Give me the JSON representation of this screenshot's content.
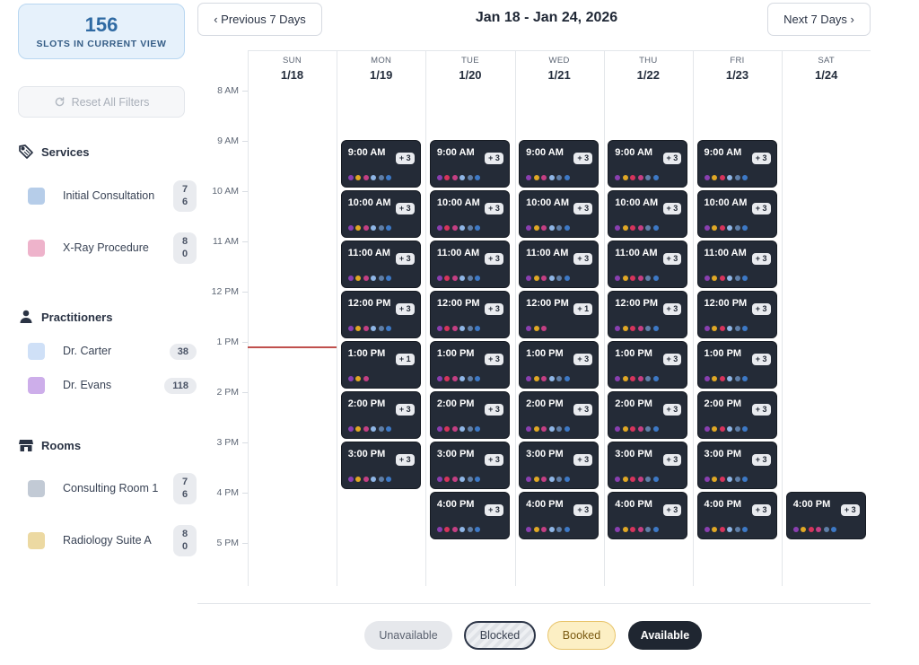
{
  "summary": {
    "count": "156",
    "label": "SLOTS IN CURRENT VIEW"
  },
  "reset": {
    "label": "Reset All Filters",
    "icon": "refresh-icon"
  },
  "filters": {
    "services": {
      "title": "Services",
      "icon": "tag-icon",
      "items": [
        {
          "label": "Initial Consultation",
          "count": "7\n6",
          "color": "#b6cde9"
        },
        {
          "label": "X-Ray Procedure",
          "count": "8\n0",
          "color": "#eeb3cb"
        }
      ]
    },
    "practitioners": {
      "title": "Practitioners",
      "icon": "user-icon",
      "items": [
        {
          "label": "Dr. Carter",
          "count": "38",
          "color": "#cfe0f7"
        },
        {
          "label": "Dr. Evans",
          "count": "118",
          "color": "#cdaeea"
        }
      ]
    },
    "rooms": {
      "title": "Rooms",
      "icon": "store-icon",
      "items": [
        {
          "label": "Consulting Room 1",
          "count": "7\n6",
          "color": "#c2cad5"
        },
        {
          "label": "Radiology Suite A",
          "count": "8\n0",
          "color": "#ecd9a2"
        }
      ]
    }
  },
  "header": {
    "prev_label": "‹ Previous 7 Days",
    "next_label": "Next 7 Days ›",
    "date_range": "Jan 18 - Jan 24, 2026"
  },
  "calendar": {
    "hours": [
      "8 AM",
      "9 AM",
      "10 AM",
      "11 AM",
      "12 PM",
      "1 PM",
      "2 PM",
      "3 PM",
      "4 PM",
      "5 PM"
    ],
    "days": [
      {
        "name": "SUN",
        "date": "1/18"
      },
      {
        "name": "MON",
        "date": "1/19"
      },
      {
        "name": "TUE",
        "date": "1/20"
      },
      {
        "name": "WED",
        "date": "1/21"
      },
      {
        "name": "THU",
        "date": "1/22"
      },
      {
        "name": "FRI",
        "date": "1/23"
      },
      {
        "name": "SAT",
        "date": "1/24"
      }
    ],
    "dot_colors": {
      "purple": "#8a3fb0",
      "yellow": "#e0a825",
      "red": "#d6345c",
      "pink": "#c43f83",
      "light_blue": "#8fb6e6",
      "slate": "#5f7fa8",
      "blue": "#3d79c6"
    },
    "slots": [
      {
        "day": 1,
        "hour": 1,
        "time": "9:00 AM",
        "more": "+ 3",
        "dots": [
          "purple",
          "yellow",
          "pink",
          "light_blue",
          "slate",
          "blue"
        ]
      },
      {
        "day": 1,
        "hour": 2,
        "time": "10:00 AM",
        "more": "+ 3",
        "dots": [
          "purple",
          "yellow",
          "pink",
          "light_blue",
          "slate",
          "blue"
        ]
      },
      {
        "day": 1,
        "hour": 3,
        "time": "11:00 AM",
        "more": "+ 3",
        "dots": [
          "purple",
          "yellow",
          "pink",
          "light_blue",
          "slate",
          "blue"
        ]
      },
      {
        "day": 1,
        "hour": 4,
        "time": "12:00 PM",
        "more": "+ 3",
        "dots": [
          "purple",
          "yellow",
          "pink",
          "light_blue",
          "slate",
          "blue"
        ]
      },
      {
        "day": 1,
        "hour": 5,
        "time": "1:00 PM",
        "more": "+ 1",
        "dots": [
          "purple",
          "yellow",
          "pink"
        ]
      },
      {
        "day": 1,
        "hour": 6,
        "time": "2:00 PM",
        "more": "+ 3",
        "dots": [
          "purple",
          "yellow",
          "pink",
          "light_blue",
          "slate",
          "blue"
        ]
      },
      {
        "day": 1,
        "hour": 7,
        "time": "3:00 PM",
        "more": "+ 3",
        "dots": [
          "purple",
          "yellow",
          "pink",
          "light_blue",
          "slate",
          "blue"
        ]
      },
      {
        "day": 2,
        "hour": 1,
        "time": "9:00 AM",
        "more": "+ 3",
        "dots": [
          "purple",
          "red",
          "pink",
          "light_blue",
          "slate",
          "blue"
        ]
      },
      {
        "day": 2,
        "hour": 2,
        "time": "10:00 AM",
        "more": "+ 3",
        "dots": [
          "purple",
          "red",
          "pink",
          "light_blue",
          "slate",
          "blue"
        ]
      },
      {
        "day": 2,
        "hour": 3,
        "time": "11:00 AM",
        "more": "+ 3",
        "dots": [
          "purple",
          "red",
          "pink",
          "light_blue",
          "slate",
          "blue"
        ]
      },
      {
        "day": 2,
        "hour": 4,
        "time": "12:00 PM",
        "more": "+ 3",
        "dots": [
          "purple",
          "red",
          "pink",
          "light_blue",
          "slate",
          "blue"
        ]
      },
      {
        "day": 2,
        "hour": 5,
        "time": "1:00 PM",
        "more": "+ 3",
        "dots": [
          "purple",
          "red",
          "pink",
          "light_blue",
          "slate",
          "blue"
        ]
      },
      {
        "day": 2,
        "hour": 6,
        "time": "2:00 PM",
        "more": "+ 3",
        "dots": [
          "purple",
          "red",
          "pink",
          "light_blue",
          "slate",
          "blue"
        ]
      },
      {
        "day": 2,
        "hour": 7,
        "time": "3:00 PM",
        "more": "+ 3",
        "dots": [
          "purple",
          "red",
          "pink",
          "light_blue",
          "slate",
          "blue"
        ]
      },
      {
        "day": 2,
        "hour": 8,
        "time": "4:00 PM",
        "more": "+ 3",
        "dots": [
          "purple",
          "red",
          "pink",
          "light_blue",
          "slate",
          "blue"
        ]
      },
      {
        "day": 3,
        "hour": 1,
        "time": "9:00 AM",
        "more": "+ 3",
        "dots": [
          "purple",
          "yellow",
          "pink",
          "light_blue",
          "slate",
          "blue"
        ]
      },
      {
        "day": 3,
        "hour": 2,
        "time": "10:00 AM",
        "more": "+ 3",
        "dots": [
          "purple",
          "yellow",
          "pink",
          "light_blue",
          "slate",
          "blue"
        ]
      },
      {
        "day": 3,
        "hour": 3,
        "time": "11:00 AM",
        "more": "+ 3",
        "dots": [
          "purple",
          "yellow",
          "pink",
          "light_blue",
          "slate",
          "blue"
        ]
      },
      {
        "day": 3,
        "hour": 4,
        "time": "12:00 PM",
        "more": "+ 1",
        "dots": [
          "purple",
          "yellow",
          "pink"
        ]
      },
      {
        "day": 3,
        "hour": 5,
        "time": "1:00 PM",
        "more": "+ 3",
        "dots": [
          "purple",
          "yellow",
          "pink",
          "light_blue",
          "slate",
          "blue"
        ]
      },
      {
        "day": 3,
        "hour": 6,
        "time": "2:00 PM",
        "more": "+ 3",
        "dots": [
          "purple",
          "yellow",
          "pink",
          "light_blue",
          "slate",
          "blue"
        ]
      },
      {
        "day": 3,
        "hour": 7,
        "time": "3:00 PM",
        "more": "+ 3",
        "dots": [
          "purple",
          "yellow",
          "pink",
          "light_blue",
          "slate",
          "blue"
        ]
      },
      {
        "day": 3,
        "hour": 8,
        "time": "4:00 PM",
        "more": "+ 3",
        "dots": [
          "purple",
          "yellow",
          "pink",
          "light_blue",
          "slate",
          "blue"
        ]
      },
      {
        "day": 4,
        "hour": 1,
        "time": "9:00 AM",
        "more": "+ 3",
        "dots": [
          "purple",
          "yellow",
          "red",
          "pink",
          "slate",
          "blue"
        ]
      },
      {
        "day": 4,
        "hour": 2,
        "time": "10:00 AM",
        "more": "+ 3",
        "dots": [
          "purple",
          "yellow",
          "red",
          "pink",
          "slate",
          "blue"
        ]
      },
      {
        "day": 4,
        "hour": 3,
        "time": "11:00 AM",
        "more": "+ 3",
        "dots": [
          "purple",
          "yellow",
          "red",
          "pink",
          "slate",
          "blue"
        ]
      },
      {
        "day": 4,
        "hour": 4,
        "time": "12:00 PM",
        "more": "+ 3",
        "dots": [
          "purple",
          "yellow",
          "red",
          "pink",
          "slate",
          "blue"
        ]
      },
      {
        "day": 4,
        "hour": 5,
        "time": "1:00 PM",
        "more": "+ 3",
        "dots": [
          "purple",
          "yellow",
          "red",
          "pink",
          "slate",
          "blue"
        ]
      },
      {
        "day": 4,
        "hour": 6,
        "time": "2:00 PM",
        "more": "+ 3",
        "dots": [
          "purple",
          "yellow",
          "red",
          "pink",
          "slate",
          "blue"
        ]
      },
      {
        "day": 4,
        "hour": 7,
        "time": "3:00 PM",
        "more": "+ 3",
        "dots": [
          "purple",
          "yellow",
          "red",
          "pink",
          "slate",
          "blue"
        ]
      },
      {
        "day": 4,
        "hour": 8,
        "time": "4:00 PM",
        "more": "+ 3",
        "dots": [
          "purple",
          "yellow",
          "red",
          "pink",
          "slate",
          "blue"
        ]
      },
      {
        "day": 5,
        "hour": 1,
        "time": "9:00 AM",
        "more": "+ 3",
        "dots": [
          "purple",
          "yellow",
          "red",
          "light_blue",
          "slate",
          "blue"
        ]
      },
      {
        "day": 5,
        "hour": 2,
        "time": "10:00 AM",
        "more": "+ 3",
        "dots": [
          "purple",
          "yellow",
          "red",
          "light_blue",
          "slate",
          "blue"
        ]
      },
      {
        "day": 5,
        "hour": 3,
        "time": "11:00 AM",
        "more": "+ 3",
        "dots": [
          "purple",
          "yellow",
          "red",
          "light_blue",
          "slate",
          "blue"
        ]
      },
      {
        "day": 5,
        "hour": 4,
        "time": "12:00 PM",
        "more": "+ 3",
        "dots": [
          "purple",
          "yellow",
          "red",
          "light_blue",
          "slate",
          "blue"
        ]
      },
      {
        "day": 5,
        "hour": 5,
        "time": "1:00 PM",
        "more": "+ 3",
        "dots": [
          "purple",
          "yellow",
          "red",
          "light_blue",
          "slate",
          "blue"
        ]
      },
      {
        "day": 5,
        "hour": 6,
        "time": "2:00 PM",
        "more": "+ 3",
        "dots": [
          "purple",
          "yellow",
          "red",
          "light_blue",
          "slate",
          "blue"
        ]
      },
      {
        "day": 5,
        "hour": 7,
        "time": "3:00 PM",
        "more": "+ 3",
        "dots": [
          "purple",
          "yellow",
          "red",
          "light_blue",
          "slate",
          "blue"
        ]
      },
      {
        "day": 5,
        "hour": 8,
        "time": "4:00 PM",
        "more": "+ 3",
        "dots": [
          "purple",
          "yellow",
          "red",
          "light_blue",
          "slate",
          "blue"
        ]
      },
      {
        "day": 6,
        "hour": 8,
        "time": "4:00 PM",
        "more": "+ 3",
        "dots": [
          "purple",
          "yellow",
          "red",
          "pink",
          "slate",
          "blue"
        ]
      }
    ]
  },
  "legend": {
    "unavailable": "Unavailable",
    "blocked": "Blocked",
    "booked": "Booked",
    "available": "Available"
  }
}
